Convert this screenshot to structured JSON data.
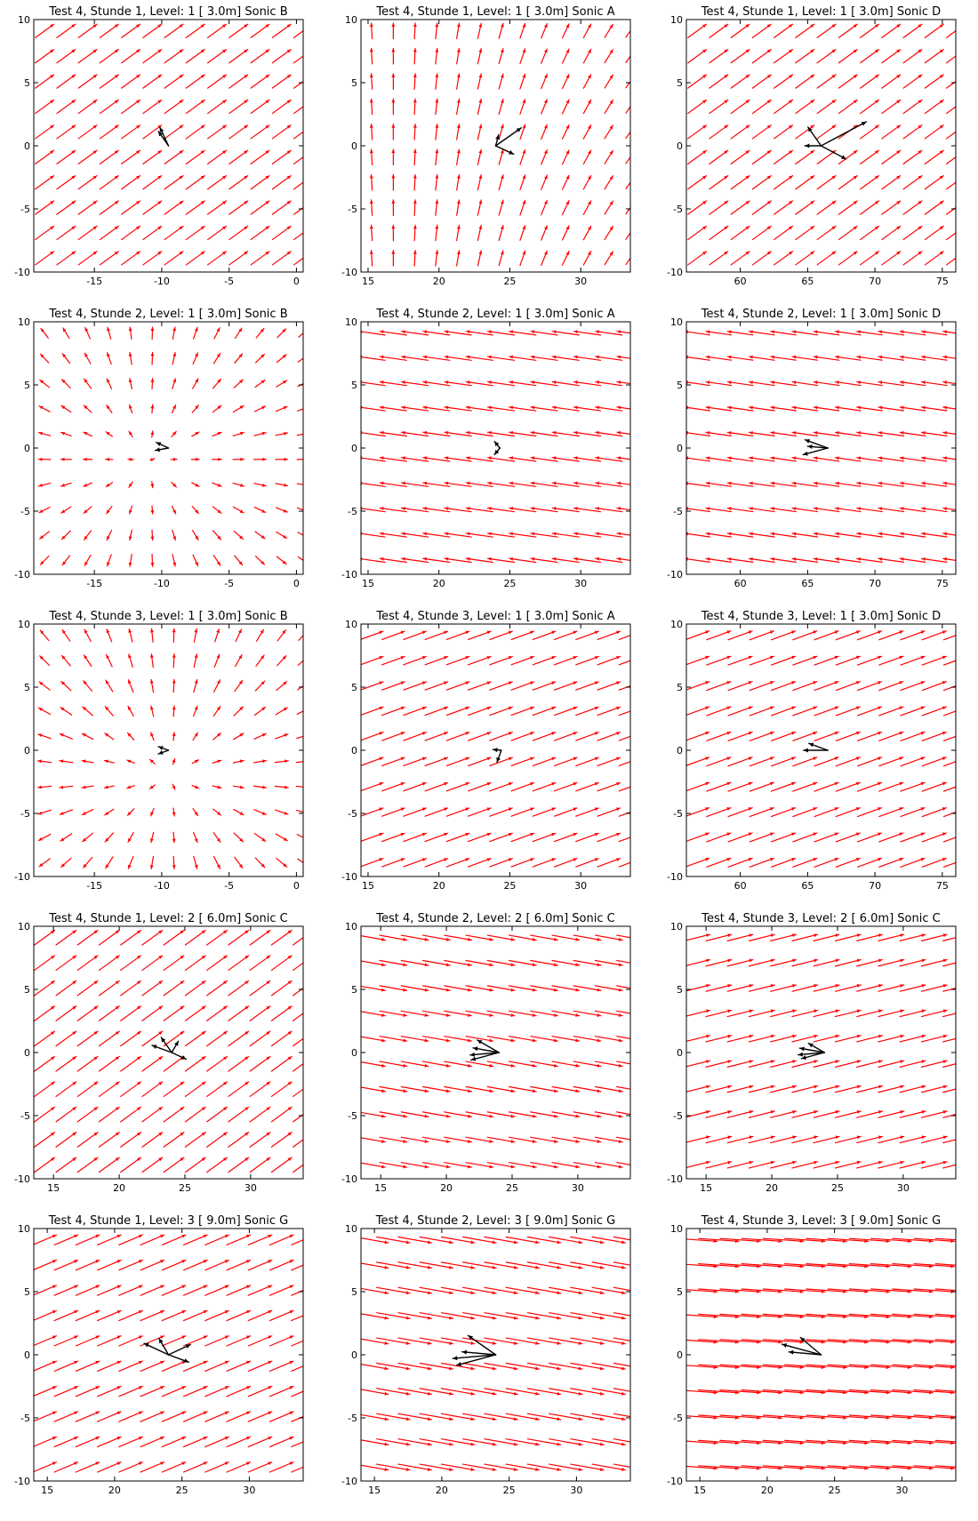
{
  "colors": {
    "field": "#ff0000",
    "sonic": "#000000",
    "axes": "#000000",
    "background": "#ffffff"
  },
  "chart_data": [
    {
      "type": "quiver",
      "title": "Test 4, Stunde 1, Level: 1 [ 3.0m] Sonic B",
      "xlim": [
        -19.5,
        0.5
      ],
      "ylim": [
        -10,
        10
      ],
      "xticks": [
        "-15",
        "-10",
        "-5",
        "0"
      ],
      "xtick_values": [
        -15,
        -10,
        -5,
        0
      ],
      "yticks": [
        "10",
        "5",
        "0",
        "-5",
        "-10"
      ],
      "field": {
        "angle_deg": 36,
        "length": 1.7,
        "pattern": "uniform"
      },
      "sonic_arrows": [
        {
          "x": -9.5,
          "y": 0,
          "angle_deg": 115,
          "length": 1.5
        },
        {
          "x": -9.5,
          "y": 0,
          "angle_deg": 125,
          "length": 1.3
        }
      ]
    },
    {
      "type": "quiver",
      "title": "Test 4, Stunde 1, Level: 1 [ 3.0m] Sonic A",
      "xlim": [
        14.5,
        33.5
      ],
      "ylim": [
        -10,
        10
      ],
      "xticks": [
        "15",
        "20",
        "25",
        "30"
      ],
      "xtick_values": [
        15,
        20,
        25,
        30
      ],
      "yticks": [
        "10",
        "5",
        "0",
        "-5",
        "-10"
      ],
      "field": {
        "angle_deg": 75,
        "length": 1.1,
        "pattern": "veering"
      },
      "sonic_arrows": [
        {
          "x": 24,
          "y": 0,
          "angle_deg": 35,
          "length": 2.2
        },
        {
          "x": 24,
          "y": 0,
          "angle_deg": -25,
          "length": 1.4
        },
        {
          "x": 24,
          "y": 0,
          "angle_deg": 75,
          "length": 0.8
        }
      ]
    },
    {
      "type": "quiver",
      "title": "Test 4, Stunde 1, Level: 1 [ 3.0m] Sonic D",
      "xlim": [
        56,
        76
      ],
      "ylim": [
        -10,
        10
      ],
      "xticks": [
        "60",
        "65",
        "70",
        "75"
      ],
      "xtick_values": [
        60,
        65,
        70,
        75
      ],
      "yticks": [
        "10",
        "5",
        "0",
        "-5",
        "-10"
      ],
      "field": {
        "angle_deg": 36,
        "length": 1.7,
        "pattern": "uniform"
      },
      "sonic_arrows": [
        {
          "x": 66,
          "y": 0,
          "angle_deg": 28,
          "length": 3.8
        },
        {
          "x": 66,
          "y": 0,
          "angle_deg": -28,
          "length": 2.1
        },
        {
          "x": 66,
          "y": 0,
          "angle_deg": 125,
          "length": 1.7
        },
        {
          "x": 66,
          "y": 0,
          "angle_deg": 180,
          "length": 1.2
        }
      ]
    },
    {
      "type": "quiver",
      "title": "Test 4, Stunde 2, Level: 1 [ 3.0m] Sonic B",
      "xlim": [
        -19.5,
        0.5
      ],
      "ylim": [
        -10,
        10
      ],
      "xticks": [
        "-15",
        "-10",
        "-5",
        "0"
      ],
      "xtick_values": [
        -15,
        -10,
        -5,
        0
      ],
      "yticks": [
        "10",
        "5",
        "0",
        "-5",
        "-10"
      ],
      "field": {
        "length": 0.9,
        "pattern": "radial",
        "center": [
          -11,
          -1
        ]
      },
      "sonic_arrows": [
        {
          "x": -9.5,
          "y": 0,
          "angle_deg": 155,
          "length": 1.0
        },
        {
          "x": -9.5,
          "y": 0,
          "angle_deg": 190,
          "length": 1.0
        }
      ]
    },
    {
      "type": "quiver",
      "title": "Test 4, Stunde 2, Level: 1 [ 3.0m] Sonic A",
      "xlim": [
        14.5,
        33.5
      ],
      "ylim": [
        -10,
        10
      ],
      "xticks": [
        "15",
        "20",
        "25",
        "30"
      ],
      "xtick_values": [
        15,
        20,
        25,
        30
      ],
      "yticks": [
        "10",
        "5",
        "0",
        "-5",
        "-10"
      ],
      "field": {
        "angle_deg": 172,
        "length": 1.9,
        "pattern": "uniform"
      },
      "sonic_arrows": [
        {
          "x": 24.3,
          "y": 0,
          "angle_deg": 130,
          "length": 0.6
        },
        {
          "x": 24.3,
          "y": 0,
          "angle_deg": -130,
          "length": 0.6
        }
      ]
    },
    {
      "type": "quiver",
      "title": "Test 4, Stunde 2, Level: 1 [ 3.0m] Sonic D",
      "xlim": [
        56,
        76
      ],
      "ylim": [
        -10,
        10
      ],
      "xticks": [
        "60",
        "65",
        "70",
        "75"
      ],
      "xtick_values": [
        60,
        65,
        70,
        75
      ],
      "yticks": [
        "10",
        "5",
        "0",
        "-5",
        "-10"
      ],
      "field": {
        "angle_deg": 172,
        "length": 1.9,
        "pattern": "uniform"
      },
      "sonic_arrows": [
        {
          "x": 66.5,
          "y": 0,
          "angle_deg": 160,
          "length": 1.8
        },
        {
          "x": 66.5,
          "y": 0,
          "angle_deg": 195,
          "length": 1.9
        },
        {
          "x": 66.5,
          "y": 0,
          "angle_deg": 175,
          "length": 1.5
        }
      ]
    },
    {
      "type": "quiver",
      "title": "Test 4, Stunde 3, Level: 1 [ 3.0m] Sonic B",
      "xlim": [
        -19.5,
        0.5
      ],
      "ylim": [
        -10,
        10
      ],
      "xticks": [
        "-15",
        "-10",
        "-5",
        "0"
      ],
      "xtick_values": [
        -15,
        -10,
        -5,
        0
      ],
      "yticks": [
        "10",
        "5",
        "0",
        "-5",
        "-10"
      ],
      "field": {
        "length": 1.0,
        "pattern": "radial",
        "center": [
          -9.5,
          -2
        ]
      },
      "sonic_arrows": [
        {
          "x": -9.5,
          "y": 0,
          "angle_deg": 160,
          "length": 0.8
        },
        {
          "x": -9.5,
          "y": 0,
          "angle_deg": 200,
          "length": 0.8
        }
      ]
    },
    {
      "type": "quiver",
      "title": "Test 4, Stunde 3, Level: 1 [ 3.0m] Sonic A",
      "xlim": [
        14.5,
        33.5
      ],
      "ylim": [
        -10,
        10
      ],
      "xticks": [
        "15",
        "20",
        "25",
        "30"
      ],
      "xtick_values": [
        15,
        20,
        25,
        30
      ],
      "yticks": [
        "10",
        "5",
        "0",
        "-5",
        "-10"
      ],
      "field": {
        "angle_deg": 20,
        "length": 1.7,
        "pattern": "uniform"
      },
      "sonic_arrows": [
        {
          "x": 24.4,
          "y": 0,
          "angle_deg": -110,
          "length": 0.9
        },
        {
          "x": 24.4,
          "y": 0,
          "angle_deg": 175,
          "length": 0.6
        }
      ]
    },
    {
      "type": "quiver",
      "title": "Test 4, Stunde 3, Level: 1 [ 3.0m] Sonic D",
      "xlim": [
        56,
        76
      ],
      "ylim": [
        -10,
        10
      ],
      "xticks": [
        "60",
        "65",
        "70",
        "75"
      ],
      "xtick_values": [
        60,
        65,
        70,
        75
      ],
      "yticks": [
        "10",
        "5",
        "0",
        "-5",
        "-10"
      ],
      "field": {
        "angle_deg": 20,
        "length": 1.9,
        "pattern": "uniform"
      },
      "sonic_arrows": [
        {
          "x": 66.5,
          "y": 0,
          "angle_deg": 160,
          "length": 1.5
        },
        {
          "x": 66.5,
          "y": 0,
          "angle_deg": 180,
          "length": 1.8
        }
      ]
    },
    {
      "type": "quiver",
      "title": "Test 4, Stunde 1, Level: 2 [ 6.0m] Sonic C",
      "xlim": [
        13.5,
        34
      ],
      "ylim": [
        -10,
        10
      ],
      "xticks": [
        "15",
        "20",
        "25",
        "30"
      ],
      "xtick_values": [
        15,
        20,
        25,
        30
      ],
      "yticks": [
        "10",
        "5",
        "0",
        "-5",
        "-10"
      ],
      "field": {
        "angle_deg": 36,
        "length": 1.9,
        "pattern": "uniform"
      },
      "sonic_arrows": [
        {
          "x": 24,
          "y": 0,
          "angle_deg": -25,
          "length": 1.2
        },
        {
          "x": 24,
          "y": 0,
          "angle_deg": 60,
          "length": 1.0
        },
        {
          "x": 24,
          "y": 0,
          "angle_deg": 160,
          "length": 1.6
        },
        {
          "x": 24,
          "y": 0,
          "angle_deg": 125,
          "length": 1.4
        }
      ]
    },
    {
      "type": "quiver",
      "title": "Test 4, Stunde 2, Level: 2 [ 6.0m] Sonic C",
      "xlim": [
        13.5,
        34
      ],
      "ylim": [
        -10,
        10
      ],
      "xticks": [
        "15",
        "20",
        "25",
        "30"
      ],
      "xtick_values": [
        15,
        20,
        25,
        30
      ],
      "yticks": [
        "10",
        "5",
        "0",
        "-5",
        "-10"
      ],
      "field": {
        "angle_deg": -10,
        "length": 2.1,
        "pattern": "uniform"
      },
      "sonic_arrows": [
        {
          "x": 24,
          "y": 0,
          "angle_deg": 150,
          "length": 1.9
        },
        {
          "x": 24,
          "y": 0,
          "angle_deg": 185,
          "length": 2.2
        },
        {
          "x": 24,
          "y": 0,
          "angle_deg": 195,
          "length": 2.2
        },
        {
          "x": 24,
          "y": 0,
          "angle_deg": 170,
          "length": 2.0
        }
      ]
    },
    {
      "type": "quiver",
      "title": "Test 4, Stunde 3, Level: 2 [ 6.0m] Sonic C",
      "xlim": [
        13.5,
        34
      ],
      "ylim": [
        -10,
        10
      ],
      "xticks": [
        "15",
        "20",
        "25",
        "30"
      ],
      "xtick_values": [
        15,
        20,
        25,
        30
      ],
      "yticks": [
        "10",
        "5",
        "0",
        "-5",
        "-10"
      ],
      "field": {
        "angle_deg": 14,
        "length": 2.0,
        "pattern": "uniform"
      },
      "sonic_arrows": [
        {
          "x": 24,
          "y": 0,
          "angle_deg": 150,
          "length": 1.4
        },
        {
          "x": 24,
          "y": 0,
          "angle_deg": 185,
          "length": 2.0
        },
        {
          "x": 24,
          "y": 0,
          "angle_deg": 195,
          "length": 1.8
        },
        {
          "x": 24,
          "y": 0,
          "angle_deg": 170,
          "length": 1.9
        }
      ]
    },
    {
      "type": "quiver",
      "title": "Test 4, Stunde 1, Level: 3 [ 9.0m] Sonic G",
      "xlim": [
        14,
        34
      ],
      "ylim": [
        -10,
        10
      ],
      "xticks": [
        "15",
        "20",
        "25",
        "30"
      ],
      "xtick_values": [
        15,
        20,
        25,
        30
      ],
      "yticks": [
        "10",
        "5",
        "0",
        "-5",
        "-10"
      ],
      "field": {
        "angle_deg": 23,
        "length": 1.9,
        "pattern": "uniform"
      },
      "sonic_arrows": [
        {
          "x": 24,
          "y": 0,
          "angle_deg": 155,
          "length": 2.0
        },
        {
          "x": 24,
          "y": 0,
          "angle_deg": -20,
          "length": 1.6
        },
        {
          "x": 24,
          "y": 0,
          "angle_deg": 25,
          "length": 1.8
        },
        {
          "x": 24,
          "y": 0,
          "angle_deg": 120,
          "length": 1.4
        }
      ]
    },
    {
      "type": "quiver",
      "title": "Test 4, Stunde 2, Level: 3 [ 9.0m] Sonic G",
      "xlim": [
        14,
        34
      ],
      "ylim": [
        -10,
        10
      ],
      "xticks": [
        "15",
        "20",
        "25",
        "30"
      ],
      "xtick_values": [
        15,
        20,
        25,
        30
      ],
      "yticks": [
        "10",
        "5",
        "0",
        "-5",
        "-10"
      ],
      "field": {
        "angle_deg": -10,
        "length": 2.5,
        "pattern": "uniform"
      },
      "sonic_arrows": [
        {
          "x": 24,
          "y": 0,
          "angle_deg": 145,
          "length": 2.5
        },
        {
          "x": 24,
          "y": 0,
          "angle_deg": 185,
          "length": 3.2
        },
        {
          "x": 24,
          "y": 0,
          "angle_deg": 195,
          "length": 3.0
        },
        {
          "x": 24,
          "y": 0,
          "angle_deg": 175,
          "length": 2.5
        }
      ]
    },
    {
      "type": "quiver",
      "title": "Test 4, Stunde 3, Level: 3 [ 9.0m] Sonic G",
      "xlim": [
        14,
        34
      ],
      "ylim": [
        -10,
        10
      ],
      "xticks": [
        "15",
        "20",
        "25",
        "30"
      ],
      "xtick_values": [
        15,
        20,
        25,
        30
      ],
      "yticks": [
        "10",
        "5",
        "0",
        "-5",
        "-10"
      ],
      "field": {
        "angle_deg": -4,
        "length": 3.0,
        "pattern": "uniform"
      },
      "sonic_arrows": [
        {
          "x": 24,
          "y": 0,
          "angle_deg": 140,
          "length": 2.0
        },
        {
          "x": 24,
          "y": 0,
          "angle_deg": 165,
          "length": 3.0
        },
        {
          "x": 24,
          "y": 0,
          "angle_deg": 175,
          "length": 2.4
        }
      ]
    }
  ]
}
